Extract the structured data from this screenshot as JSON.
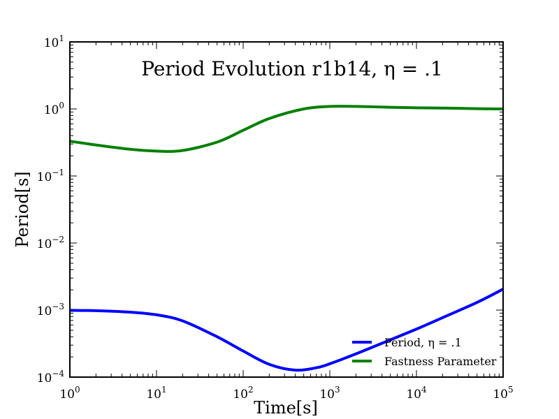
{
  "chart_data": {
    "type": "line",
    "title": "Period Evolution r1b14, η = .1",
    "xlabel": "Time[s]",
    "ylabel": "Period[s]",
    "xscale": "log",
    "yscale": "log",
    "xlim": [
      1,
      100000
    ],
    "ylim": [
      0.0001,
      10
    ],
    "x_ticks": [
      {
        "base": "10",
        "exp": "0"
      },
      {
        "base": "10",
        "exp": "1"
      },
      {
        "base": "10",
        "exp": "2"
      },
      {
        "base": "10",
        "exp": "3"
      },
      {
        "base": "10",
        "exp": "4"
      },
      {
        "base": "10",
        "exp": "5"
      }
    ],
    "y_ticks": [
      {
        "base": "10",
        "exp": "−4"
      },
      {
        "base": "10",
        "exp": "−3"
      },
      {
        "base": "10",
        "exp": "−2"
      },
      {
        "base": "10",
        "exp": "−1"
      },
      {
        "base": "10",
        "exp": "0"
      },
      {
        "base": "10",
        "exp": "1"
      }
    ],
    "grid": false,
    "legend_position": "lower-right",
    "series": [
      {
        "name": "Period, η = .1",
        "color": "#0000ff",
        "x": [
          1,
          2,
          5,
          10,
          20,
          50,
          100,
          200,
          400,
          700,
          1000,
          2000,
          5000,
          10000,
          20000,
          50000,
          100000
        ],
        "y": [
          0.00099,
          0.00098,
          0.00093,
          0.00085,
          0.00069,
          0.0004,
          0.000245,
          0.000155,
          0.000127,
          0.000138,
          0.000158,
          0.000222,
          0.00036,
          0.00052,
          0.00077,
          0.0013,
          0.00205
        ]
      },
      {
        "name": "Fastness Parameter",
        "color": "#008000",
        "x": [
          1,
          2,
          5,
          10,
          20,
          50,
          100,
          200,
          500,
          1000,
          2000,
          5000,
          10000,
          20000,
          50000,
          100000
        ],
        "y": [
          0.33,
          0.29,
          0.25,
          0.235,
          0.24,
          0.32,
          0.48,
          0.72,
          1.0,
          1.09,
          1.09,
          1.06,
          1.04,
          1.03,
          1.01,
          1.0
        ]
      }
    ]
  }
}
